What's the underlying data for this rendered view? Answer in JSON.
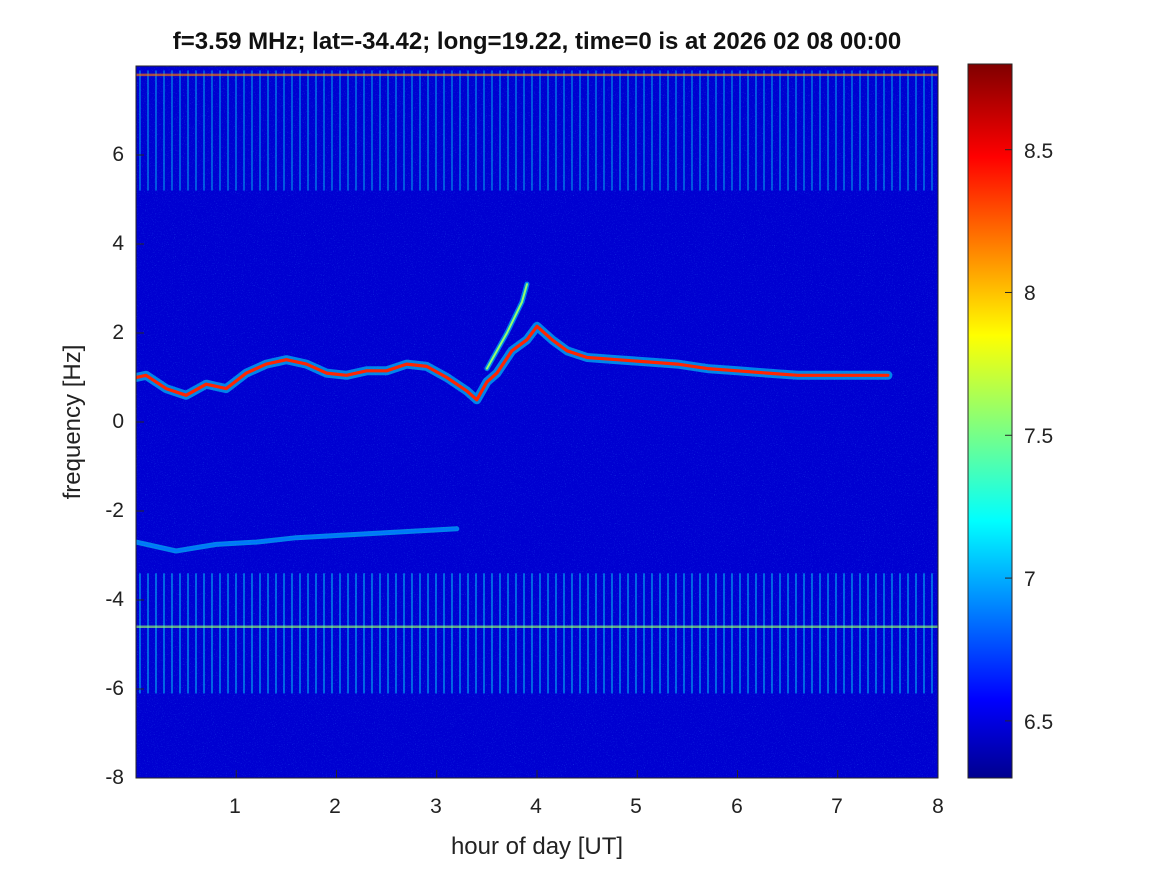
{
  "chart_data": {
    "type": "heatmap",
    "title": "f=3.59 MHz;  lat=-34.42; long=19.22, time=0 is at 2026 02 08 00:00",
    "xlabel": "hour of day [UT]",
    "ylabel": "frequency [Hz]",
    "xlim": [
      0,
      8
    ],
    "ylim": [
      -8,
      8
    ],
    "xticks": [
      "1",
      "2",
      "3",
      "4",
      "5",
      "6",
      "7",
      "8"
    ],
    "yticks": [
      "-8",
      "-6",
      "-4",
      "-2",
      "0",
      "2",
      "4",
      "6"
    ],
    "colorbar": {
      "colormap": "jet",
      "range": [
        6.3,
        8.8
      ],
      "ticks": [
        "6.5",
        "7",
        "7.5",
        "8",
        "8.5"
      ]
    },
    "background_level": 6.5,
    "traces": [
      {
        "name": "dominant Doppler trace",
        "points": [
          [
            0.0,
            1.0
          ],
          [
            0.1,
            1.05
          ],
          [
            0.3,
            0.75
          ],
          [
            0.5,
            0.6
          ],
          [
            0.7,
            0.85
          ],
          [
            0.9,
            0.75
          ],
          [
            1.1,
            1.1
          ],
          [
            1.3,
            1.3
          ],
          [
            1.5,
            1.4
          ],
          [
            1.7,
            1.3
          ],
          [
            1.9,
            1.1
          ],
          [
            2.1,
            1.05
          ],
          [
            2.3,
            1.15
          ],
          [
            2.5,
            1.15
          ],
          [
            2.7,
            1.3
          ],
          [
            2.9,
            1.25
          ],
          [
            3.1,
            1.0
          ],
          [
            3.3,
            0.7
          ],
          [
            3.4,
            0.5
          ],
          [
            3.5,
            0.9
          ],
          [
            3.6,
            1.1
          ],
          [
            3.75,
            1.6
          ],
          [
            3.9,
            1.85
          ],
          [
            4.0,
            2.15
          ],
          [
            4.15,
            1.85
          ],
          [
            4.3,
            1.6
          ],
          [
            4.5,
            1.45
          ],
          [
            4.8,
            1.4
          ],
          [
            5.1,
            1.35
          ],
          [
            5.4,
            1.3
          ],
          [
            5.7,
            1.2
          ],
          [
            6.0,
            1.15
          ],
          [
            6.3,
            1.1
          ],
          [
            6.6,
            1.05
          ],
          [
            7.0,
            1.05
          ],
          [
            7.5,
            1.05
          ]
        ],
        "level": 8.4
      },
      {
        "name": "secondary trace",
        "points": [
          [
            3.5,
            1.2
          ],
          [
            3.7,
            2.0
          ],
          [
            3.85,
            2.7
          ],
          [
            3.9,
            3.1
          ]
        ],
        "level": 7.6
      },
      {
        "name": "weak negative trace",
        "points": [
          [
            0.0,
            -2.7
          ],
          [
            0.4,
            -2.9
          ],
          [
            0.8,
            -2.75
          ],
          [
            1.2,
            -2.7
          ],
          [
            1.6,
            -2.6
          ],
          [
            2.0,
            -2.55
          ],
          [
            2.4,
            -2.5
          ],
          [
            2.8,
            -2.45
          ],
          [
            3.2,
            -2.4
          ]
        ],
        "level": 6.9
      }
    ],
    "horizontal_bands": [
      {
        "y": 7.8,
        "level": 8.2
      },
      {
        "y": -4.6,
        "level": 7.6
      }
    ]
  }
}
